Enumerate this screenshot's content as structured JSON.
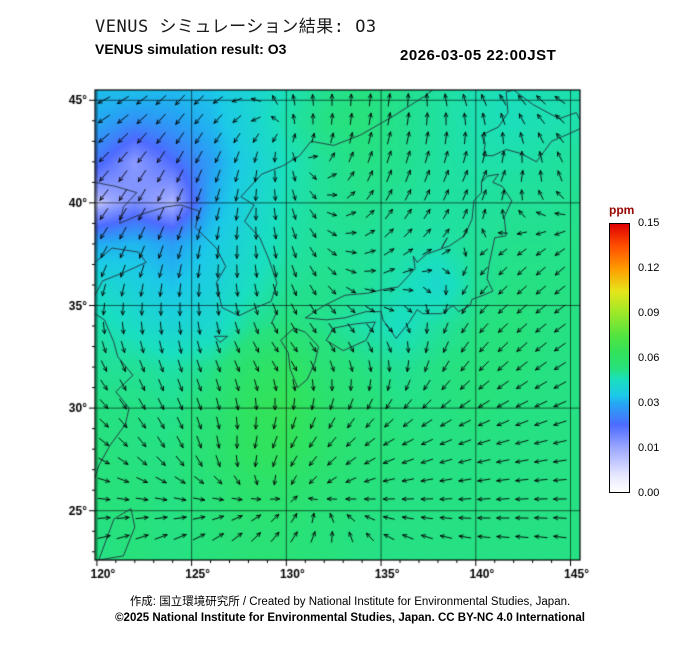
{
  "header": {
    "title_jp": "VENUS シミュレーション結果: O3",
    "title_en": "VENUS simulation result: O3",
    "timestamp": "2026-03-05 22:00JST"
  },
  "footer": {
    "credit_line": "作成: 国立環境研究所 / Created by National Institute for Environmental Studies, Japan.",
    "copyright_line": "©2025 National Institute for Environmental Studies, Japan. CC BY-NC 4.0 International"
  },
  "chart_data": {
    "type": "heatmap",
    "title": "VENUS simulation result: O3",
    "species": "O3",
    "units": "ppm",
    "overlays": [
      "wind-vectors",
      "coastlines",
      "graticule"
    ],
    "axes": {
      "lon_range": [
        119.9,
        145.5
      ],
      "lat_range": [
        22.6,
        45.5
      ],
      "lon_ticks": [
        120,
        125,
        130,
        135,
        140,
        145
      ],
      "lat_ticks": [
        45,
        40,
        35,
        30,
        25
      ],
      "lon_tick_labels": [
        "120°",
        "125°",
        "130°",
        "135°",
        "140°",
        "145°"
      ],
      "lat_tick_labels": [
        "45°",
        "40°",
        "35°",
        "30°",
        "25°"
      ],
      "grid": true
    },
    "colorbar": {
      "label": "ppm",
      "value_breaks": [
        0.0,
        0.01,
        0.03,
        0.06,
        0.09,
        0.12,
        0.15
      ],
      "tick_labels": [
        "0.00",
        "0.01",
        "0.03",
        "0.06",
        "0.09",
        "0.12",
        "0.15"
      ],
      "stops": [
        {
          "t": 0.0,
          "color": "#ffffff"
        },
        {
          "t": 0.06,
          "color": "#e8e9ff"
        },
        {
          "t": 0.167,
          "color": "#9aa6ff"
        },
        {
          "t": 0.25,
          "color": "#4d6bff"
        },
        {
          "t": 0.333,
          "color": "#23aaf2"
        },
        {
          "t": 0.36,
          "color": "#1cc9e8"
        },
        {
          "t": 0.42,
          "color": "#1adfbf"
        },
        {
          "t": 0.46,
          "color": "#27e17c"
        },
        {
          "t": 0.52,
          "color": "#31e25b"
        },
        {
          "t": 0.583,
          "color": "#52e43f"
        },
        {
          "t": 0.667,
          "color": "#9ce828"
        },
        {
          "t": 0.75,
          "color": "#e6e51a"
        },
        {
          "t": 0.833,
          "color": "#ff9c00"
        },
        {
          "t": 0.917,
          "color": "#ff4f00"
        },
        {
          "t": 1.0,
          "color": "#de0000"
        }
      ]
    },
    "o3_field": {
      "lons": [
        120,
        122,
        124,
        126,
        128,
        130,
        132,
        134,
        136,
        138,
        140,
        142,
        144,
        146
      ],
      "lats": [
        46,
        44,
        42,
        40,
        38,
        36,
        34,
        32,
        30,
        28,
        26,
        24
      ],
      "values_ppm": [
        [
          0.034,
          0.036,
          0.034,
          0.035,
          0.04,
          0.046,
          0.05,
          0.052,
          0.051,
          0.049,
          0.047,
          0.046,
          0.047,
          0.048
        ],
        [
          0.03,
          0.026,
          0.028,
          0.032,
          0.04,
          0.048,
          0.052,
          0.053,
          0.051,
          0.049,
          0.047,
          0.046,
          0.047,
          0.048
        ],
        [
          0.022,
          0.012,
          0.02,
          0.028,
          0.038,
          0.046,
          0.05,
          0.052,
          0.051,
          0.049,
          0.048,
          0.048,
          0.049,
          0.05
        ],
        [
          0.006,
          0.014,
          0.008,
          0.03,
          0.04,
          0.047,
          0.05,
          0.051,
          0.05,
          0.049,
          0.049,
          0.05,
          0.05,
          0.051
        ],
        [
          0.03,
          0.032,
          0.028,
          0.035,
          0.042,
          0.048,
          0.05,
          0.05,
          0.049,
          0.048,
          0.05,
          0.051,
          0.051,
          0.052
        ],
        [
          0.042,
          0.038,
          0.034,
          0.038,
          0.045,
          0.05,
          0.051,
          0.05,
          0.047,
          0.042,
          0.05,
          0.052,
          0.052,
          0.052
        ],
        [
          0.048,
          0.044,
          0.04,
          0.042,
          0.05,
          0.053,
          0.051,
          0.048,
          0.045,
          0.049,
          0.052,
          0.053,
          0.052,
          0.052
        ],
        [
          0.05,
          0.05,
          0.048,
          0.051,
          0.058,
          0.062,
          0.055,
          0.052,
          0.05,
          0.052,
          0.053,
          0.053,
          0.052,
          0.052
        ],
        [
          0.052,
          0.052,
          0.051,
          0.054,
          0.062,
          0.066,
          0.058,
          0.054,
          0.052,
          0.052,
          0.053,
          0.052,
          0.052,
          0.052
        ],
        [
          0.053,
          0.052,
          0.052,
          0.056,
          0.062,
          0.064,
          0.058,
          0.054,
          0.053,
          0.052,
          0.052,
          0.052,
          0.052,
          0.052
        ],
        [
          0.053,
          0.053,
          0.052,
          0.054,
          0.058,
          0.058,
          0.055,
          0.053,
          0.052,
          0.052,
          0.052,
          0.052,
          0.052,
          0.052
        ],
        [
          0.052,
          0.053,
          0.052,
          0.053,
          0.055,
          0.055,
          0.053,
          0.052,
          0.052,
          0.052,
          0.052,
          0.052,
          0.052,
          0.052
        ]
      ]
    },
    "wind_field": {
      "lons": [
        119,
        124.5,
        130,
        135.5,
        141,
        146.5
      ],
      "lats": [
        46,
        41.5,
        37,
        32.5,
        28,
        23.5
      ],
      "uv": [
        [
          [
            -1.4,
            -0.4
          ],
          [
            -1.0,
            -0.9
          ],
          [
            -0.2,
            0.9
          ],
          [
            0.1,
            1.2
          ],
          [
            -0.7,
            0.9
          ],
          [
            -1.2,
            0.4
          ]
        ],
        [
          [
            -1.1,
            -1.1
          ],
          [
            -0.7,
            -1.4
          ],
          [
            0.1,
            -0.6
          ],
          [
            0.4,
            1.1
          ],
          [
            0.4,
            0.9
          ],
          [
            -0.6,
            0.6
          ]
        ],
        [
          [
            -0.6,
            -1.0
          ],
          [
            -0.3,
            -1.3
          ],
          [
            0.3,
            -1.1
          ],
          [
            0.8,
            0.4
          ],
          [
            -0.4,
            -0.4
          ],
          [
            -1.1,
            -0.9
          ]
        ],
        [
          [
            0.4,
            -0.8
          ],
          [
            0.3,
            -1.1
          ],
          [
            0.5,
            -0.6
          ],
          [
            0.2,
            -0.8
          ],
          [
            -1.0,
            -1.0
          ],
          [
            -1.4,
            -0.8
          ]
        ],
        [
          [
            0.9,
            -0.4
          ],
          [
            0.6,
            -1.1
          ],
          [
            -0.6,
            -1.1
          ],
          [
            -1.0,
            -0.5
          ],
          [
            -1.2,
            -0.3
          ],
          [
            -1.3,
            -0.2
          ]
        ],
        [
          [
            1.1,
            0.2
          ],
          [
            1.3,
            0.6
          ],
          [
            0.7,
            1.0
          ],
          [
            -0.7,
            0.4
          ],
          [
            -1.1,
            0.1
          ],
          [
            -1.2,
            0.2
          ]
        ]
      ]
    },
    "coastlines": [
      {
        "name": "china-liaodong-bohai",
        "points": [
          [
            119.9,
            41.0
          ],
          [
            121.0,
            40.8
          ],
          [
            122.1,
            40.5
          ],
          [
            121.4,
            39.8
          ],
          [
            121.2,
            39.0
          ],
          [
            122.2,
            39.4
          ],
          [
            123.6,
            39.8
          ],
          [
            124.4,
            39.9
          ]
        ]
      },
      {
        "name": "korea-and-russia-coast",
        "points": [
          [
            124.4,
            39.9
          ],
          [
            125.4,
            39.6
          ],
          [
            125.2,
            38.8
          ],
          [
            126.3,
            37.8
          ],
          [
            126.8,
            36.9
          ],
          [
            126.3,
            36.1
          ],
          [
            126.6,
            34.9
          ],
          [
            127.5,
            34.5
          ],
          [
            128.4,
            34.9
          ],
          [
            129.2,
            35.2
          ],
          [
            129.5,
            36.1
          ],
          [
            129.1,
            37.2
          ],
          [
            128.6,
            38.3
          ],
          [
            127.8,
            39.1
          ],
          [
            128.3,
            39.9
          ],
          [
            127.6,
            40.3
          ],
          [
            128.7,
            41.4
          ],
          [
            129.8,
            41.8
          ],
          [
            130.7,
            42.3
          ],
          [
            131.3,
            43.0
          ],
          [
            132.5,
            42.8
          ],
          [
            133.9,
            43.3
          ],
          [
            135.6,
            44.2
          ],
          [
            137.3,
            45.2
          ],
          [
            138.4,
            46.0
          ]
        ]
      },
      {
        "name": "china-shandong",
        "points": [
          [
            119.9,
            37.1
          ],
          [
            120.8,
            37.8
          ],
          [
            122.2,
            37.6
          ],
          [
            122.6,
            37.1
          ],
          [
            121.4,
            36.6
          ],
          [
            120.3,
            36.2
          ],
          [
            119.9,
            35.5
          ]
        ]
      },
      {
        "name": "china-east-coast",
        "points": [
          [
            119.9,
            34.6
          ],
          [
            120.4,
            34.3
          ],
          [
            120.9,
            33.2
          ],
          [
            121.1,
            32.5
          ],
          [
            121.9,
            31.6
          ],
          [
            121.0,
            30.8
          ],
          [
            121.7,
            30.0
          ],
          [
            121.5,
            29.2
          ],
          [
            120.7,
            28.2
          ],
          [
            120.1,
            27.2
          ],
          [
            119.9,
            26.6
          ]
        ]
      },
      {
        "name": "kyushu",
        "points": [
          [
            130.4,
            33.9
          ],
          [
            129.7,
            33.3
          ],
          [
            130.1,
            32.7
          ],
          [
            130.2,
            31.9
          ],
          [
            130.6,
            31.0
          ],
          [
            131.1,
            31.4
          ],
          [
            131.5,
            32.2
          ],
          [
            131.7,
            33.0
          ],
          [
            131.0,
            33.7
          ],
          [
            130.4,
            33.9
          ]
        ]
      },
      {
        "name": "shikoku",
        "points": [
          [
            132.1,
            33.3
          ],
          [
            133.0,
            32.8
          ],
          [
            134.2,
            33.3
          ],
          [
            134.7,
            34.2
          ],
          [
            133.6,
            34.1
          ],
          [
            132.5,
            33.9
          ],
          [
            132.1,
            33.3
          ]
        ]
      },
      {
        "name": "honshu",
        "points": [
          [
            131.0,
            34.4
          ],
          [
            132.1,
            34.3
          ],
          [
            133.1,
            34.4
          ],
          [
            134.2,
            34.7
          ],
          [
            135.0,
            34.7
          ],
          [
            135.1,
            34.3
          ],
          [
            135.8,
            33.4
          ],
          [
            136.5,
            34.2
          ],
          [
            136.9,
            34.8
          ],
          [
            137.2,
            34.6
          ],
          [
            138.2,
            34.6
          ],
          [
            138.8,
            35.0
          ],
          [
            139.1,
            34.7
          ],
          [
            139.7,
            35.0
          ],
          [
            139.8,
            35.3
          ],
          [
            140.4,
            35.5
          ],
          [
            140.9,
            35.7
          ],
          [
            140.6,
            36.3
          ],
          [
            140.7,
            37.0
          ],
          [
            141.0,
            38.3
          ],
          [
            141.6,
            38.4
          ],
          [
            141.5,
            39.3
          ],
          [
            141.9,
            40.1
          ],
          [
            141.4,
            40.8
          ],
          [
            140.9,
            41.0
          ],
          [
            141.2,
            41.4
          ],
          [
            140.6,
            41.3
          ],
          [
            140.3,
            41.0
          ],
          [
            140.3,
            40.5
          ],
          [
            139.9,
            40.1
          ],
          [
            139.8,
            39.2
          ],
          [
            139.4,
            38.4
          ],
          [
            138.6,
            37.9
          ],
          [
            137.4,
            37.5
          ],
          [
            136.9,
            37.1
          ],
          [
            136.7,
            37.4
          ],
          [
            136.8,
            36.8
          ],
          [
            135.9,
            35.9
          ],
          [
            135.2,
            35.8
          ],
          [
            134.3,
            35.6
          ],
          [
            133.1,
            35.5
          ],
          [
            132.0,
            35.0
          ],
          [
            131.0,
            34.4
          ]
        ]
      },
      {
        "name": "hokkaido",
        "points": [
          [
            140.4,
            42.3
          ],
          [
            140.5,
            42.9
          ],
          [
            140.3,
            43.3
          ],
          [
            141.2,
            43.7
          ],
          [
            141.7,
            44.4
          ],
          [
            141.6,
            45.4
          ],
          [
            142.0,
            45.5
          ],
          [
            143.0,
            44.8
          ],
          [
            144.4,
            44.1
          ],
          [
            145.3,
            44.4
          ],
          [
            145.7,
            43.7
          ],
          [
            145.0,
            43.4
          ],
          [
            144.0,
            43.0
          ],
          [
            143.2,
            42.0
          ],
          [
            142.4,
            42.4
          ],
          [
            141.6,
            42.6
          ],
          [
            140.9,
            42.3
          ],
          [
            140.4,
            42.3
          ]
        ]
      },
      {
        "name": "jeju",
        "points": [
          [
            126.2,
            33.5
          ],
          [
            126.9,
            33.5
          ],
          [
            126.5,
            33.2
          ],
          [
            126.2,
            33.5
          ]
        ]
      },
      {
        "name": "taiwan-north",
        "points": [
          [
            120.1,
            22.6
          ],
          [
            120.9,
            24.6
          ],
          [
            121.8,
            25.1
          ],
          [
            122.0,
            24.2
          ],
          [
            121.4,
            22.8
          ],
          [
            120.1,
            22.6
          ]
        ]
      },
      {
        "name": "tsushima",
        "points": [
          [
            129.2,
            34.1
          ],
          [
            129.5,
            34.7
          ]
        ]
      },
      {
        "name": "sado",
        "points": [
          [
            138.2,
            37.8
          ],
          [
            138.5,
            38.3
          ],
          [
            138.3,
            38.0
          ],
          [
            138.2,
            37.8
          ]
        ]
      }
    ]
  }
}
